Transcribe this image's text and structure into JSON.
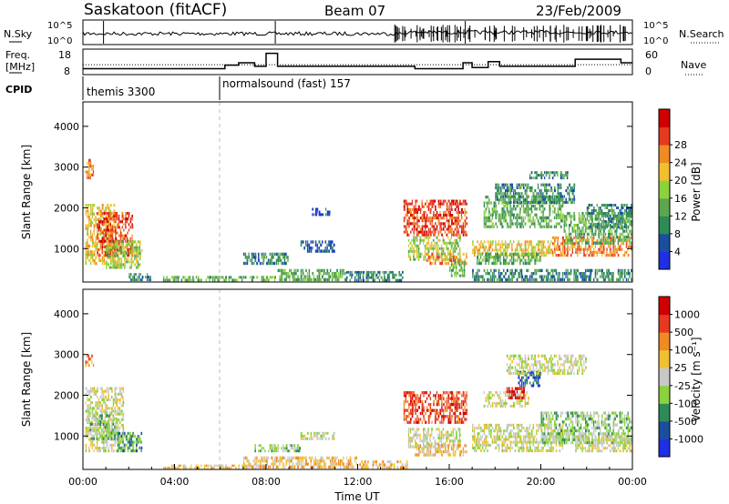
{
  "header": {
    "station": "Saskatoon (fitACF)",
    "beam": "Beam 07",
    "date": "23/Feb/2009"
  },
  "chart_data": [
    {
      "type": "line",
      "panel": "noise",
      "left_label": "N.Sky",
      "right_label": "N.Search",
      "left_ticks": [
        "10^5",
        "10^0"
      ],
      "right_ticks": [
        "10^5",
        "10^0"
      ]
    },
    {
      "type": "line",
      "panel": "frequency",
      "left_label_1": "Freq.",
      "left_label_2": "[MHz]",
      "right_label": "Nave",
      "left_ticks": [
        18,
        8
      ],
      "right_ticks": [
        60,
        0
      ],
      "freq_segments": [
        {
          "t0": 0.0,
          "t1": 6.2,
          "v": 10.5
        },
        {
          "t0": 6.2,
          "t1": 6.8,
          "v": 12.0
        },
        {
          "t0": 6.8,
          "t1": 7.5,
          "v": 13.0
        },
        {
          "t0": 7.5,
          "t1": 8.0,
          "v": 11.5
        },
        {
          "t0": 8.0,
          "t1": 8.5,
          "v": 17.0
        },
        {
          "t0": 8.5,
          "t1": 14.5,
          "v": 11.5
        },
        {
          "t0": 14.5,
          "t1": 16.6,
          "v": 10.5
        },
        {
          "t0": 16.6,
          "t1": 17.0,
          "v": 13.0
        },
        {
          "t0": 17.0,
          "t1": 17.7,
          "v": 11.0
        },
        {
          "t0": 17.7,
          "t1": 18.2,
          "v": 13.5
        },
        {
          "t0": 18.2,
          "t1": 21.5,
          "v": 11.5
        },
        {
          "t0": 21.5,
          "t1": 23.5,
          "v": 14.5
        },
        {
          "t0": 23.5,
          "t1": 24.0,
          "v": 13.0
        }
      ],
      "nave_level": 25
    },
    {
      "type": "table",
      "panel": "cpid",
      "label": "CPID",
      "programs": [
        {
          "t0": 0.0,
          "label": "themis 3300"
        },
        {
          "t0": 6.0,
          "label": "normalsound (fast) 157"
        }
      ]
    },
    {
      "type": "heatmap",
      "panel": "power",
      "ylabel": "Slant Range [km]",
      "yticks": [
        1000,
        2000,
        3000,
        4000
      ],
      "ylim": [
        180,
        4600
      ],
      "colorbar_label": "Power [dB]",
      "colorbar_ticks": [
        "4",
        "8",
        "12",
        "16",
        "20",
        "24",
        "28"
      ],
      "colors": [
        "#1f2fe6",
        "#1a4fa0",
        "#2e8b57",
        "#5ca64e",
        "#8cd23c",
        "#f0c030",
        "#f08a24",
        "#e63a20",
        "#d00000"
      ],
      "blobs": [
        {
          "t0": 0.1,
          "t1": 1.4,
          "r0": 600,
          "r1": 2100,
          "level": 5
        },
        {
          "t0": 0.1,
          "t1": 0.5,
          "r0": 2700,
          "r1": 3200,
          "level": 6
        },
        {
          "t0": 0.6,
          "t1": 2.2,
          "r0": 800,
          "r1": 1900,
          "level": 7
        },
        {
          "t0": 1.0,
          "t1": 2.6,
          "r0": 500,
          "r1": 1200,
          "level": 4
        },
        {
          "t0": 2.0,
          "t1": 3.0,
          "r0": 200,
          "r1": 400,
          "level": 2
        },
        {
          "t0": 3.5,
          "t1": 8.5,
          "r0": 190,
          "r1": 330,
          "level": 3
        },
        {
          "t0": 7.0,
          "t1": 9.0,
          "r0": 600,
          "r1": 900,
          "level": 2
        },
        {
          "t0": 8.5,
          "t1": 11.5,
          "r0": 200,
          "r1": 500,
          "level": 3
        },
        {
          "t0": 9.5,
          "t1": 11.0,
          "r0": 900,
          "r1": 1200,
          "level": 1
        },
        {
          "t0": 10.0,
          "t1": 10.8,
          "r0": 1800,
          "r1": 2000,
          "level": 1
        },
        {
          "t0": 11.5,
          "t1": 14.0,
          "r0": 190,
          "r1": 450,
          "level": 2
        },
        {
          "t0": 14.0,
          "t1": 16.8,
          "r0": 1300,
          "r1": 2200,
          "level": 7
        },
        {
          "t0": 14.2,
          "t1": 16.5,
          "r0": 700,
          "r1": 1300,
          "level": 4
        },
        {
          "t0": 15.0,
          "t1": 16.8,
          "r0": 600,
          "r1": 900,
          "level": 6
        },
        {
          "t0": 16.0,
          "t1": 16.7,
          "r0": 300,
          "r1": 700,
          "level": 3
        },
        {
          "t0": 17.0,
          "t1": 20.5,
          "r0": 800,
          "r1": 1200,
          "level": 5
        },
        {
          "t0": 17.2,
          "t1": 20.0,
          "r0": 600,
          "r1": 900,
          "level": 3
        },
        {
          "t0": 17.5,
          "t1": 21.0,
          "r0": 1500,
          "r1": 2300,
          "level": 3
        },
        {
          "t0": 18.0,
          "t1": 21.5,
          "r0": 2100,
          "r1": 2600,
          "level": 2
        },
        {
          "t0": 19.5,
          "t1": 21.2,
          "r0": 2700,
          "r1": 2900,
          "level": 2
        },
        {
          "t0": 20.5,
          "t1": 24.0,
          "r0": 800,
          "r1": 1300,
          "level": 6
        },
        {
          "t0": 21.0,
          "t1": 24.0,
          "r0": 1100,
          "r1": 1900,
          "level": 3
        },
        {
          "t0": 22.0,
          "t1": 24.0,
          "r0": 1500,
          "r1": 2100,
          "level": 2
        },
        {
          "t0": 17.0,
          "t1": 24.0,
          "r0": 200,
          "r1": 500,
          "level": 2
        }
      ]
    },
    {
      "type": "heatmap",
      "panel": "velocity",
      "xlabel": "Time UT",
      "ylabel": "Slant Range [km]",
      "yticks": [
        1000,
        2000,
        3000,
        4000
      ],
      "ylim": [
        180,
        4600
      ],
      "xticks": [
        "00:00",
        "04:00",
        "08:00",
        "12:00",
        "16:00",
        "20:00",
        "00:00"
      ],
      "xlim": [
        0,
        24
      ],
      "colorbar_label": "Velocity [m s⁻¹]",
      "colorbar_ticks": [
        "1000",
        "500",
        "100",
        "25",
        "-25",
        "-100",
        "-500",
        "-1000"
      ],
      "colors": [
        "#1f2fe6",
        "#1a4fa0",
        "#2e8b57",
        "#8cd23c",
        "#c8c8c8",
        "#f0c030",
        "#f08a24",
        "#e63a20",
        "#d00000"
      ],
      "blobs": [
        {
          "t0": 0.1,
          "t1": 1.8,
          "r0": 600,
          "r1": 2200,
          "level": 4
        },
        {
          "t0": 0.3,
          "t1": 1.5,
          "r0": 900,
          "r1": 1600,
          "level": 3
        },
        {
          "t0": 0.1,
          "t1": 0.5,
          "r0": 2700,
          "r1": 3000,
          "level": 6
        },
        {
          "t0": 1.5,
          "t1": 2.6,
          "r0": 600,
          "r1": 1100,
          "level": 2
        },
        {
          "t0": 3.5,
          "t1": 8.0,
          "r0": 190,
          "r1": 300,
          "level": 5
        },
        {
          "t0": 7.0,
          "t1": 12.0,
          "r0": 200,
          "r1": 500,
          "level": 5
        },
        {
          "t0": 7.5,
          "t1": 9.5,
          "r0": 600,
          "r1": 800,
          "level": 3
        },
        {
          "t0": 9.5,
          "t1": 11.0,
          "r0": 900,
          "r1": 1100,
          "level": 4
        },
        {
          "t0": 12.0,
          "t1": 14.2,
          "r0": 190,
          "r1": 400,
          "level": 5
        },
        {
          "t0": 14.0,
          "t1": 16.8,
          "r0": 1300,
          "r1": 2100,
          "level": 7
        },
        {
          "t0": 14.2,
          "t1": 16.5,
          "r0": 700,
          "r1": 1200,
          "level": 4
        },
        {
          "t0": 14.5,
          "t1": 16.8,
          "r0": 500,
          "r1": 800,
          "level": 5
        },
        {
          "t0": 17.0,
          "t1": 21.0,
          "r0": 600,
          "r1": 1300,
          "level": 4
        },
        {
          "t0": 17.5,
          "t1": 19.5,
          "r0": 1700,
          "r1": 2100,
          "level": 4
        },
        {
          "t0": 18.5,
          "t1": 19.3,
          "r0": 1900,
          "r1": 2200,
          "level": 8
        },
        {
          "t0": 19.0,
          "t1": 20.0,
          "r0": 2200,
          "r1": 2600,
          "level": 1
        },
        {
          "t0": 18.5,
          "t1": 22.0,
          "r0": 2500,
          "r1": 3000,
          "level": 4
        },
        {
          "t0": 20.0,
          "t1": 24.0,
          "r0": 800,
          "r1": 1600,
          "level": 3
        },
        {
          "t0": 21.5,
          "t1": 24.0,
          "r0": 600,
          "r1": 1000,
          "level": 4
        }
      ]
    }
  ]
}
